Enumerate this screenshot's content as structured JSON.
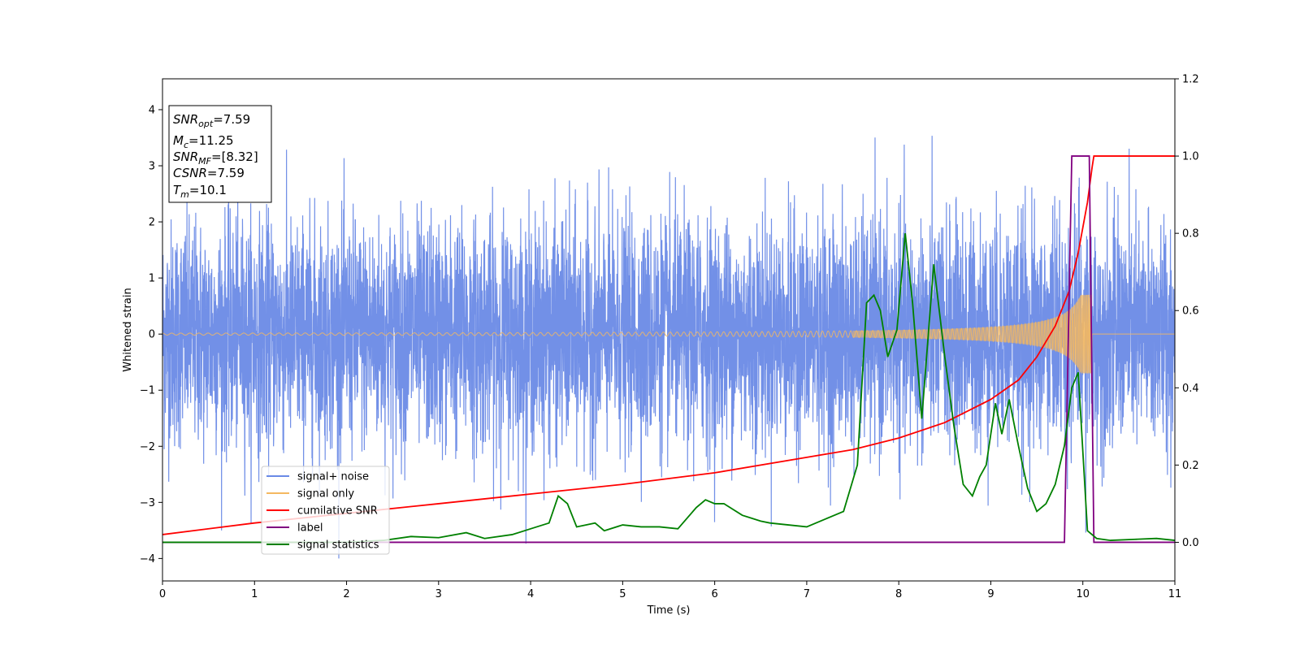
{
  "chart_data": {
    "type": "line",
    "xlabel": "Time (s)",
    "ylabel": "Whitened strain",
    "xlim": [
      0,
      11
    ],
    "ylim": [
      -4.4,
      4.55
    ],
    "ylim_right": [
      -0.1,
      1.2
    ],
    "x_ticks": [
      0,
      1,
      2,
      3,
      4,
      5,
      6,
      7,
      8,
      9,
      10,
      11
    ],
    "y_ticks": [
      -4,
      -3,
      -2,
      -1,
      0,
      1,
      2,
      3,
      4
    ],
    "y_right_ticks": [
      0.0,
      0.2,
      0.4,
      0.6,
      0.8,
      1.0,
      1.2
    ],
    "info_box": [
      {
        "main": "SNR",
        "sub": "opt",
        "rest": "=7.59"
      },
      {
        "main": "M",
        "sub": "c",
        "rest": "=11.25"
      },
      {
        "main": "SNR",
        "sub": "MF",
        "rest": "=[8.32]"
      },
      {
        "main": "CSNR",
        "sub": "",
        "rest": "=7.59"
      },
      {
        "main": "T",
        "sub": "m",
        "rest": "=10.1"
      }
    ],
    "legend_position": "lower-left",
    "grid": false,
    "series": [
      {
        "name": "signal+ noise",
        "color": "#6a8ae6",
        "axis": "left",
        "description": "whitened noisy strain, std approx 1.0, extremes about +4.15 / -4.0"
      },
      {
        "name": "signal only",
        "color": "#f4b860",
        "axis": "left",
        "description": "chirp rising in amplitude to about 0.7 and ending at t = 10.1 s"
      },
      {
        "name": "cumilative SNR",
        "color": "#ff0000",
        "axis": "right",
        "x": [
          0,
          1,
          2,
          3,
          4,
          5,
          6,
          7,
          7.5,
          8,
          8.5,
          9,
          9.3,
          9.5,
          9.7,
          9.85,
          9.95,
          10.05,
          10.1,
          10.12,
          11
        ],
        "values": [
          0.02,
          0.05,
          0.075,
          0.1,
          0.125,
          0.15,
          0.18,
          0.22,
          0.24,
          0.27,
          0.31,
          0.37,
          0.42,
          0.48,
          0.56,
          0.65,
          0.75,
          0.88,
          0.97,
          1.0,
          1.0
        ]
      },
      {
        "name": "label",
        "color": "#800080",
        "axis": "right",
        "x": [
          0,
          9.8,
          9.88,
          10.07,
          10.12,
          11
        ],
        "values": [
          0,
          0,
          1,
          1,
          0,
          0
        ]
      },
      {
        "name": "signal statistics",
        "color": "#008000",
        "axis": "right",
        "x": [
          0,
          1,
          2,
          2.4,
          2.7,
          3,
          3.3,
          3.5,
          3.8,
          4,
          4.2,
          4.3,
          4.4,
          4.5,
          4.6,
          4.7,
          4.8,
          5,
          5.2,
          5.4,
          5.6,
          5.8,
          5.9,
          6,
          6.1,
          6.3,
          6.5,
          6.6,
          6.8,
          7,
          7.2,
          7.4,
          7.55,
          7.65,
          7.73,
          7.8,
          7.88,
          7.98,
          8.07,
          8.15,
          8.25,
          8.38,
          8.5,
          8.6,
          8.7,
          8.8,
          8.88,
          8.95,
          9.05,
          9.12,
          9.2,
          9.3,
          9.4,
          9.5,
          9.6,
          9.7,
          9.8,
          9.88,
          9.95,
          10.05,
          10.15,
          10.3,
          10.6,
          10.8,
          11
        ],
        "values": [
          0,
          0,
          0,
          0.005,
          0.015,
          0.012,
          0.025,
          0.01,
          0.02,
          0.035,
          0.05,
          0.12,
          0.1,
          0.04,
          0.045,
          0.05,
          0.03,
          0.045,
          0.04,
          0.04,
          0.035,
          0.09,
          0.11,
          0.1,
          0.1,
          0.07,
          0.055,
          0.05,
          0.045,
          0.04,
          0.06,
          0.08,
          0.2,
          0.62,
          0.64,
          0.6,
          0.48,
          0.55,
          0.8,
          0.62,
          0.32,
          0.72,
          0.48,
          0.3,
          0.15,
          0.12,
          0.17,
          0.2,
          0.36,
          0.28,
          0.37,
          0.25,
          0.14,
          0.08,
          0.1,
          0.15,
          0.25,
          0.4,
          0.44,
          0.03,
          0.01,
          0.005,
          0.008,
          0.01,
          0.005
        ]
      }
    ]
  }
}
